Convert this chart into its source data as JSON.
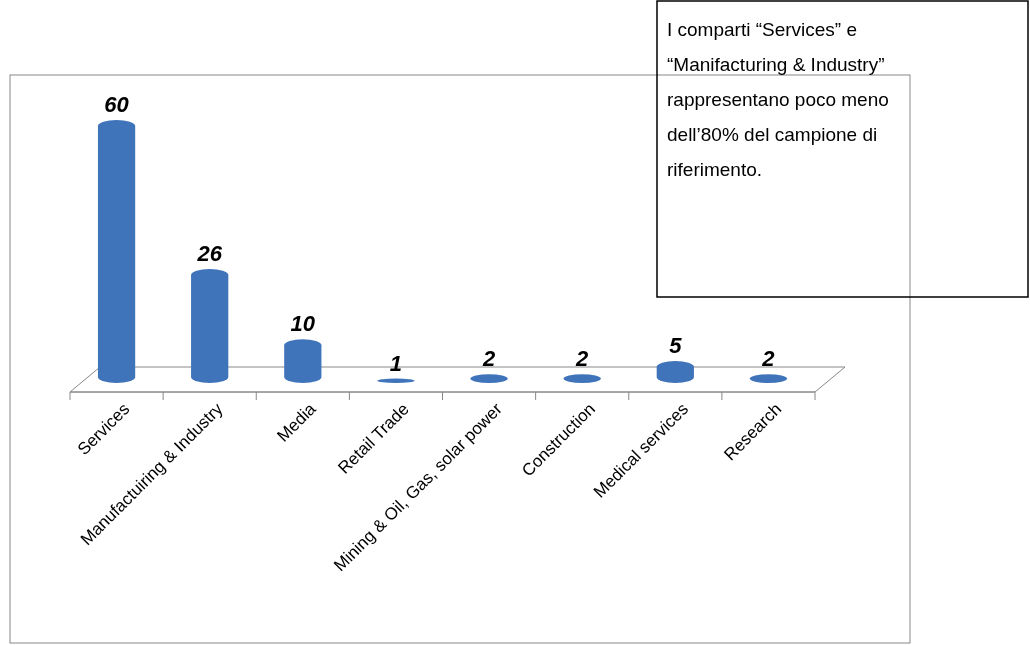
{
  "chart_data": {
    "type": "bar",
    "categories": [
      "Services",
      "Manufactuiring & Industry",
      "Media",
      "Retail Trade",
      "Mining & Oil, Gas, solar power",
      "Construction",
      "Medical services",
      "Research"
    ],
    "values": [
      60,
      26,
      10,
      1,
      2,
      2,
      5,
      2
    ],
    "color": "#3f74ba",
    "data_labels": true,
    "annotations": [
      "I comparti “Services” e “Manifacturing & Industry” rappresentano poco meno dell’80% del campione di riferimento."
    ]
  }
}
